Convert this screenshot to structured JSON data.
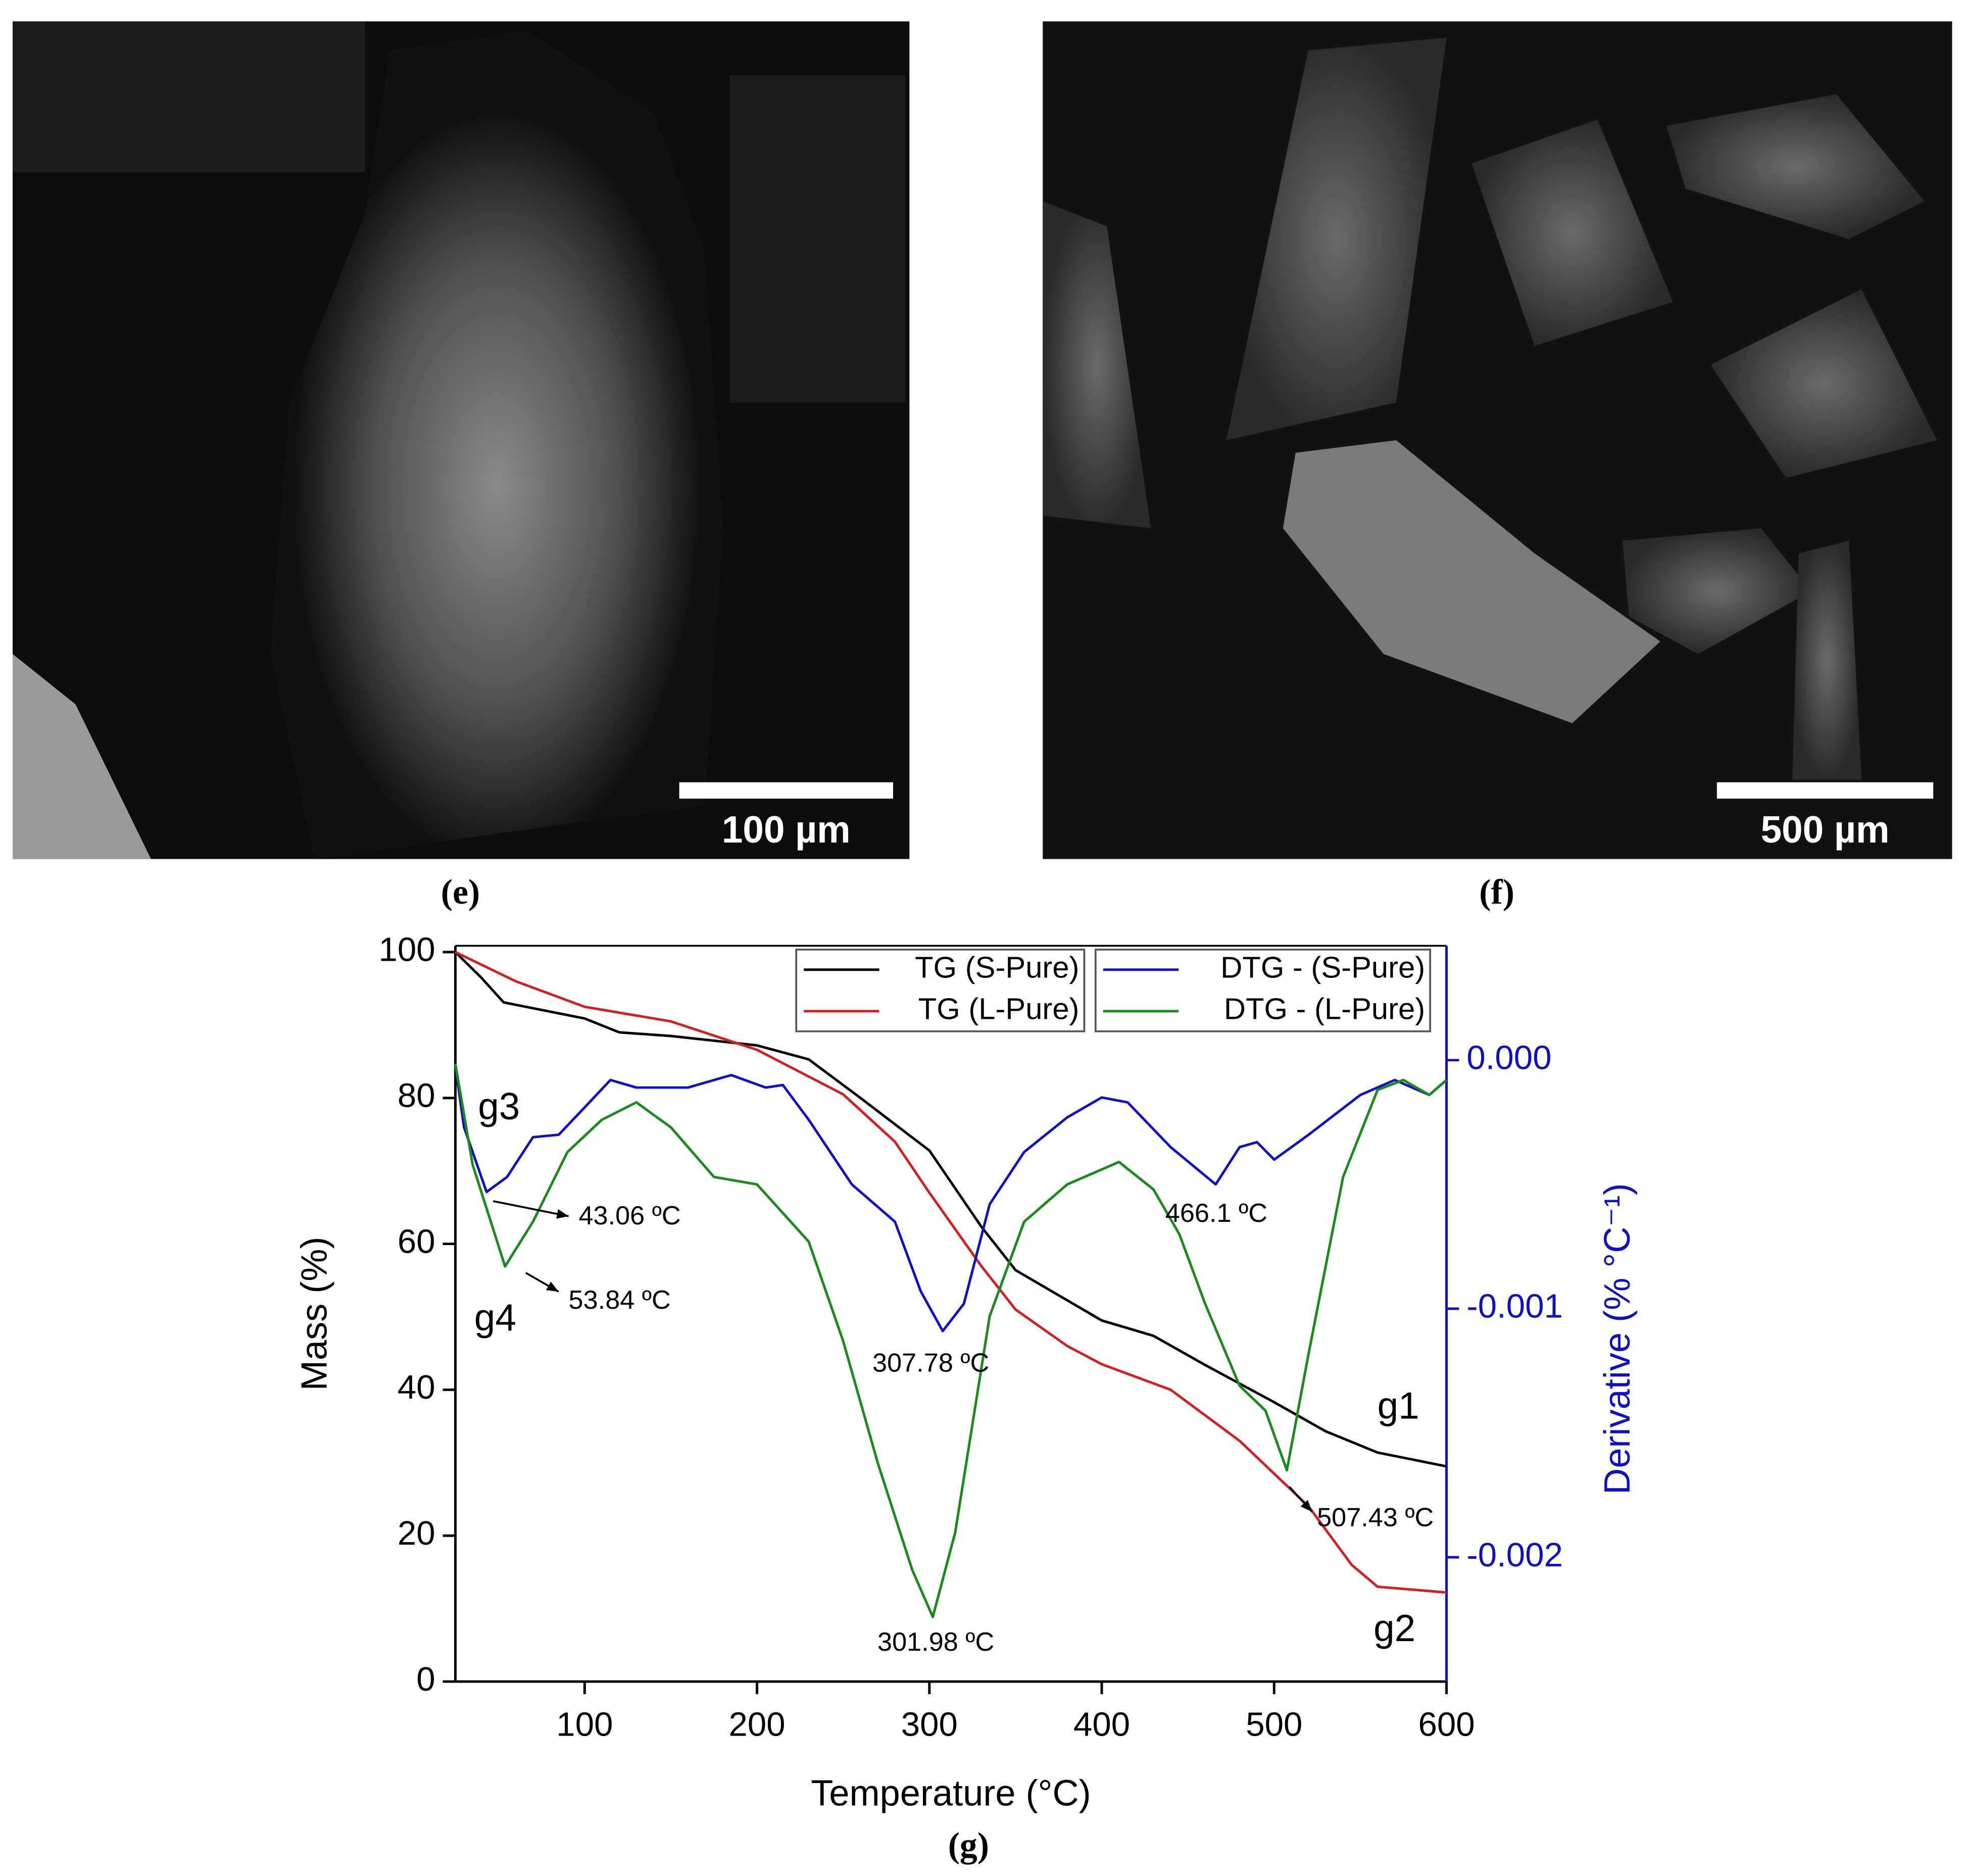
{
  "panels": [
    {
      "label": "(e)",
      "scale_bar": "100 µm"
    },
    {
      "label": "(f)",
      "scale_bar": "500 µm"
    }
  ],
  "chart_data": {
    "type": "line",
    "caption": "(g)",
    "xlabel": "Temperature (°C)",
    "ylabel": "Mass (%)",
    "y2label": "Derivative (% °C⁻¹)",
    "xlim": [
      25,
      600
    ],
    "xticks": [
      100,
      200,
      300,
      400,
      500,
      600
    ],
    "ylim": [
      0,
      100
    ],
    "yticks": [
      0,
      20,
      40,
      60,
      80,
      100
    ],
    "y2lim": [
      -0.0025,
      0.00046
    ],
    "y2ticks": [
      {
        "value": -0.002,
        "label": "-0.002"
      },
      {
        "value": -0.001,
        "label": "-0.001"
      },
      {
        "value": 0,
        "label": "0.000"
      }
    ],
    "y2color": "#1010c0",
    "legend": "top-right",
    "series": [
      {
        "name": "TG (S-Pure)",
        "color": "#000000",
        "x": [
          25,
          40,
          53,
          100,
          120,
          150,
          200,
          230,
          260,
          300,
          330,
          350,
          400,
          430,
          460,
          500,
          530,
          560,
          600
        ],
        "values": [
          100,
          96.5,
          93.1,
          90.9,
          89,
          88.5,
          87.2,
          85.3,
          80,
          72.8,
          62.4,
          56.4,
          49.5,
          47.4,
          43.4,
          38.3,
          34.3,
          31.4,
          29.5
        ]
      },
      {
        "name": "TG (L-Pure)",
        "color": "#d02020",
        "x": [
          25,
          60,
          100,
          150,
          200,
          250,
          280,
          300,
          330,
          350,
          380,
          400,
          440,
          480,
          520,
          545,
          560,
          600
        ],
        "values": [
          100,
          96,
          92.5,
          90.5,
          86.6,
          80.5,
          74,
          67,
          57,
          51,
          46,
          43.5,
          40,
          33,
          24,
          16,
          13,
          12.2
        ]
      },
      {
        "name": "DTG - (S-Pure)",
        "color": "#1010c0",
        "axis": "y2",
        "x": [
          25,
          30,
          43.06,
          55,
          70,
          85,
          100,
          115,
          130,
          160,
          185,
          205,
          215,
          230,
          255,
          280,
          295,
          307.78,
          320,
          335,
          355,
          380,
          400,
          415,
          440,
          466.1,
          480,
          490,
          500,
          520,
          550,
          570,
          590,
          600
        ],
        "values": [
          -2.5e-05,
          -0.00027,
          -0.00053,
          -0.00047,
          -0.00031,
          -0.0003,
          -0.00019,
          -8e-05,
          -0.00011,
          -0.00011,
          -6e-05,
          -0.00011,
          -0.0001,
          -0.00024,
          -0.0005,
          -0.00065,
          -0.00093,
          -0.00109,
          -0.00098,
          -0.00058,
          -0.00037,
          -0.00023,
          -0.00015,
          -0.00017,
          -0.00035,
          -0.0005,
          -0.00035,
          -0.00033,
          -0.0004,
          -0.0003,
          -0.00014,
          -8e-05,
          -0.00014,
          -8e-05
        ]
      },
      {
        "name": "DTG - (L-Pure)",
        "color": "#1a8a1a",
        "axis": "y2",
        "x": [
          25,
          35,
          53.84,
          70,
          90,
          110,
          130,
          150,
          175,
          200,
          230,
          250,
          270,
          290,
          301.98,
          315,
          335,
          355,
          380,
          410,
          430,
          445,
          460,
          480,
          495,
          507.43,
          520,
          540,
          560,
          575,
          590,
          600
        ],
        "values": [
          -1.5e-05,
          -0.00042,
          -0.00083,
          -0.00065,
          -0.00037,
          -0.00024,
          -0.00017,
          -0.00027,
          -0.00047,
          -0.0005,
          -0.00073,
          -0.00113,
          -0.00162,
          -0.00205,
          -0.00224,
          -0.0019,
          -0.00103,
          -0.00065,
          -0.0005,
          -0.00041,
          -0.00052,
          -0.0007,
          -0.00098,
          -0.00131,
          -0.00141,
          -0.00165,
          -0.00118,
          -0.00047,
          -0.00012,
          -8e-05,
          -0.00014,
          -8e-05
        ]
      }
    ],
    "annotations": [
      "43.06 ºC",
      "53.84 ºC",
      "307.78 ºC",
      "301.98 ºC",
      "466.1 ºC",
      "507.43 ºC",
      "g1",
      "g2",
      "g3",
      "g4"
    ]
  }
}
